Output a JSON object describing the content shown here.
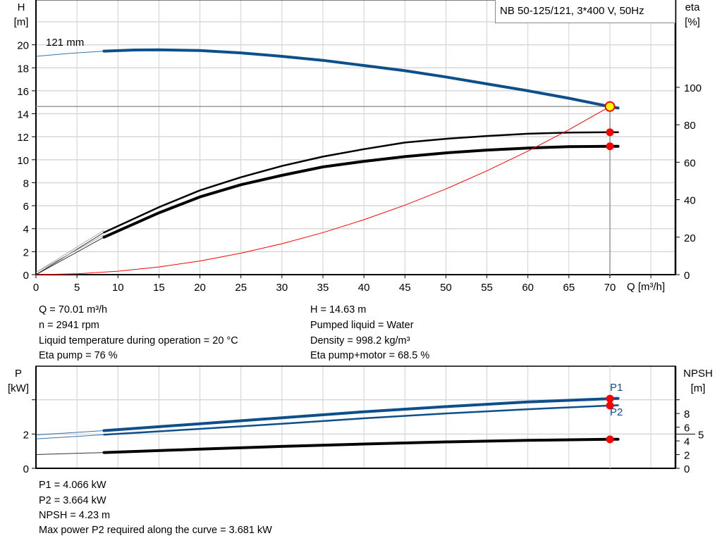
{
  "chart_data": [
    {
      "type": "line",
      "title": "NB 50-125/121, 3*400 V, 50Hz",
      "xlabel": "Q [m³/h]",
      "ylabel": "H\n[m]",
      "ylabel_line1": "H",
      "ylabel_line2": "[m]",
      "y2label_line1": "eta",
      "y2label_line2": "[%]",
      "xlim": [
        0,
        78
      ],
      "ylim": [
        0,
        23.9
      ],
      "y2lim": [
        0,
        146.6
      ],
      "xticks": [
        0,
        5,
        10,
        15,
        20,
        25,
        30,
        35,
        40,
        45,
        50,
        55,
        60,
        65,
        70
      ],
      "yticks": [
        0,
        2,
        4,
        6,
        8,
        10,
        12,
        14,
        16,
        18,
        20
      ],
      "y2ticks": [
        0,
        20,
        40,
        60,
        80,
        100
      ],
      "grid": true,
      "curve_label": "121 mm",
      "duty_point": {
        "Q": 70.01,
        "H": 14.63,
        "eta_pump": 76,
        "eta_pump_motor": 68.5
      },
      "series": [
        {
          "id": "head",
          "axis": "left",
          "color": "#0d4f8b",
          "extrapolated": [
            [
              0,
              19.0
            ],
            [
              4,
              19.25
            ],
            [
              8.3,
              19.45
            ]
          ],
          "points": [
            [
              8.3,
              19.45
            ],
            [
              12,
              19.55
            ],
            [
              15,
              19.57
            ],
            [
              20,
              19.5
            ],
            [
              25,
              19.3
            ],
            [
              30,
              19.0
            ],
            [
              35,
              18.65
            ],
            [
              40,
              18.2
            ],
            [
              45,
              17.75
            ],
            [
              50,
              17.2
            ],
            [
              55,
              16.6
            ],
            [
              60,
              16.0
            ],
            [
              65,
              15.35
            ],
            [
              70,
              14.63
            ],
            [
              71,
              14.5
            ]
          ]
        },
        {
          "id": "eta-pump",
          "axis": "right",
          "color": "#000000",
          "extrapolated": [
            [
              0,
              0
            ],
            [
              8.3,
              22.5
            ]
          ],
          "points": [
            [
              8.3,
              22.5
            ],
            [
              15,
              36
            ],
            [
              20,
              45
            ],
            [
              25,
              52
            ],
            [
              30,
              58
            ],
            [
              35,
              63
            ],
            [
              40,
              67
            ],
            [
              45,
              70.5
            ],
            [
              50,
              72.5
            ],
            [
              55,
              74
            ],
            [
              60,
              75.2
            ],
            [
              65,
              75.8
            ],
            [
              70,
              76
            ],
            [
              71,
              76
            ]
          ]
        },
        {
          "id": "eta-pump-motor",
          "axis": "right",
          "color": "#000000",
          "extrapolated": [
            [
              0,
              0
            ],
            [
              8.3,
              20
            ]
          ],
          "points": [
            [
              8.3,
              20
            ],
            [
              15,
              33
            ],
            [
              20,
              41.5
            ],
            [
              25,
              48
            ],
            [
              30,
              53
            ],
            [
              35,
              57.5
            ],
            [
              40,
              60.5
            ],
            [
              45,
              63
            ],
            [
              50,
              65
            ],
            [
              55,
              66.5
            ],
            [
              60,
              67.6
            ],
            [
              65,
              68.3
            ],
            [
              70,
              68.5
            ],
            [
              71,
              68.5
            ]
          ]
        },
        {
          "id": "system-curve",
          "axis": "left",
          "color": "#ff0000",
          "points": [
            [
              0,
              0
            ],
            [
              5,
              0.075
            ],
            [
              10,
              0.3
            ],
            [
              15,
              0.67
            ],
            [
              20,
              1.19
            ],
            [
              25,
              1.87
            ],
            [
              30,
              2.69
            ],
            [
              35,
              3.66
            ],
            [
              40,
              4.78
            ],
            [
              45,
              6.05
            ],
            [
              50,
              7.46
            ],
            [
              55,
              9.03
            ],
            [
              60,
              10.75
            ],
            [
              65,
              12.61
            ],
            [
              70,
              14.63
            ]
          ]
        }
      ]
    },
    {
      "type": "line",
      "ylabel_line1": "P",
      "ylabel_line2": "[kW]",
      "y2label_line1": "NPSH",
      "y2label_line2": "[m]",
      "xlim": [
        0,
        78
      ],
      "ylim": [
        0,
        5.96
      ],
      "y2lim": [
        0,
        14.9
      ],
      "yticks": [
        0,
        2,
        4
      ],
      "ytick_labels": [
        "0",
        "2",
        ""
      ],
      "y2ticks": [
        0,
        2,
        4,
        5,
        6,
        8,
        10
      ],
      "y2tick_labels": [
        "0",
        "2",
        "4",
        "5",
        "6",
        "8",
        ""
      ],
      "grid": true,
      "series": [
        {
          "id": "P1",
          "name": "P1",
          "axis": "left",
          "color": "#0d4f8b",
          "extrapolated": [
            [
              0,
              1.95
            ],
            [
              8.3,
              2.2
            ]
          ],
          "points": [
            [
              8.3,
              2.2
            ],
            [
              20,
              2.6
            ],
            [
              30,
              2.95
            ],
            [
              40,
              3.3
            ],
            [
              50,
              3.6
            ],
            [
              60,
              3.87
            ],
            [
              70,
              4.066
            ],
            [
              71,
              4.08
            ]
          ]
        },
        {
          "id": "P2",
          "name": "P2",
          "axis": "left",
          "color": "#0d4f8b",
          "extrapolated": [
            [
              0,
              1.72
            ],
            [
              8.3,
              1.96
            ]
          ],
          "points": [
            [
              8.3,
              1.96
            ],
            [
              20,
              2.3
            ],
            [
              30,
              2.6
            ],
            [
              40,
              2.92
            ],
            [
              50,
              3.2
            ],
            [
              60,
              3.45
            ],
            [
              70,
              3.664
            ],
            [
              71,
              3.68
            ]
          ]
        },
        {
          "id": "NPSH",
          "axis": "right",
          "color": "#000000",
          "extrapolated": [
            [
              0,
              2.0
            ],
            [
              8.3,
              2.3
            ]
          ],
          "points": [
            [
              8.3,
              2.3
            ],
            [
              20,
              2.8
            ],
            [
              30,
              3.2
            ],
            [
              40,
              3.55
            ],
            [
              50,
              3.85
            ],
            [
              60,
              4.08
            ],
            [
              70,
              4.23
            ],
            [
              71,
              4.24
            ]
          ]
        }
      ]
    }
  ],
  "info_top": {
    "left": [
      "Q = 70.01 m³/h",
      "n = 2941 rpm",
      "Liquid temperature during operation = 20 °C",
      "Eta pump = 76 %"
    ],
    "right": [
      "H = 14.63 m",
      "Pumped liquid = Water",
      "Density = 998.2 kg/m³",
      "Eta pump+motor = 68.5 %"
    ]
  },
  "info_bottom": [
    "P1 = 4.066 kW",
    "P2 = 3.664 kW",
    "NPSH = 4.23 m",
    "Max power P2 required along the curve = 3.681 kW"
  ],
  "colors": {
    "pump_blue": "#0d4f8b",
    "marker_red": "#ff0000",
    "duty_yellow": "#ffff00",
    "grid": "#d0d0d0"
  }
}
